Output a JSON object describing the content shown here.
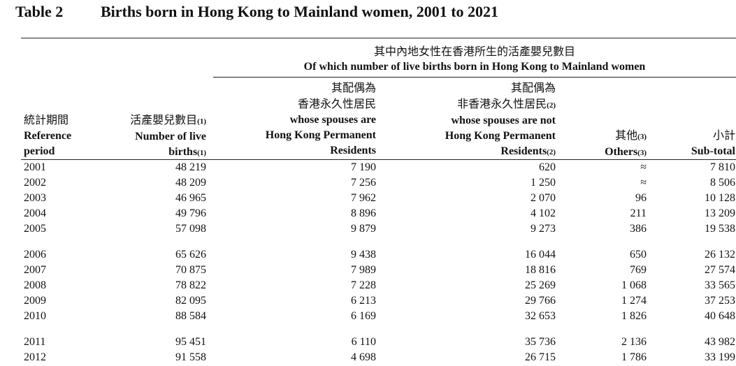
{
  "title": {
    "number": "Table 2",
    "text": "Births born in Hong Kong to Mainland women, 2001 to 2021"
  },
  "spanning_header": {
    "zh": "其中內地女性在香港所生的活產嬰兒數目",
    "en": "Of which number of live births born in Hong Kong to Mainland women"
  },
  "columns": [
    {
      "lines": [
        {
          "zh": "統計期間"
        },
        {
          "en": "Reference"
        },
        {
          "en": "period"
        }
      ]
    },
    {
      "lines": [
        {
          "zh": "活產嬰兒數目",
          "note": "(1)"
        },
        {
          "en": "Number of live"
        },
        {
          "en": "births",
          "note": "(1)"
        }
      ]
    },
    {
      "lines": [
        {
          "zh": "其配偶為"
        },
        {
          "zh": "香港永久性居民"
        },
        {
          "en": "whose spouses are"
        },
        {
          "en": "Hong Kong Permanent"
        },
        {
          "en": "Residents"
        }
      ]
    },
    {
      "lines": [
        {
          "zh": "其配偶為"
        },
        {
          "zh": "非香港永久性居民",
          "note": "(2)"
        },
        {
          "en": "whose spouses are not"
        },
        {
          "en": "Hong Kong Permanent"
        },
        {
          "en": "Residents",
          "note": "(2)"
        }
      ]
    },
    {
      "lines": [
        {
          "zh": "其他",
          "note": "(3)"
        },
        {
          "en": "Others",
          "note": "(3)"
        }
      ]
    },
    {
      "lines": [
        {
          "zh": "小計"
        },
        {
          "en": "Sub-total"
        }
      ]
    }
  ],
  "rows": [
    [
      "2001",
      "48 219",
      "7 190",
      "620",
      "≈",
      "7 810"
    ],
    [
      "2002",
      "48 209",
      "7 256",
      "1 250",
      "≈",
      "8 506"
    ],
    [
      "2003",
      "46 965",
      "7 962",
      "2 070",
      "96",
      "10 128"
    ],
    [
      "2004",
      "49 796",
      "8 896",
      "4 102",
      "211",
      "13 209"
    ],
    [
      "2005",
      "57 098",
      "9 879",
      "9 273",
      "386",
      "19 538"
    ],
    [
      "2006",
      "65 626",
      "9 438",
      "16 044",
      "650",
      "26 132"
    ],
    [
      "2007",
      "70 875",
      "7 989",
      "18 816",
      "769",
      "27 574"
    ],
    [
      "2008",
      "78 822",
      "7 228",
      "25 269",
      "1 068",
      "33 565"
    ],
    [
      "2009",
      "82 095",
      "6 213",
      "29 766",
      "1 274",
      "37 253"
    ],
    [
      "2010",
      "88 584",
      "6 169",
      "32 653",
      "1 826",
      "40 648"
    ],
    [
      "2011",
      "95 451",
      "6 110",
      "35 736",
      "2 136",
      "43 982"
    ],
    [
      "2012",
      "91 558",
      "4 698",
      "26 715",
      "1 786",
      "33 199"
    ]
  ]
}
